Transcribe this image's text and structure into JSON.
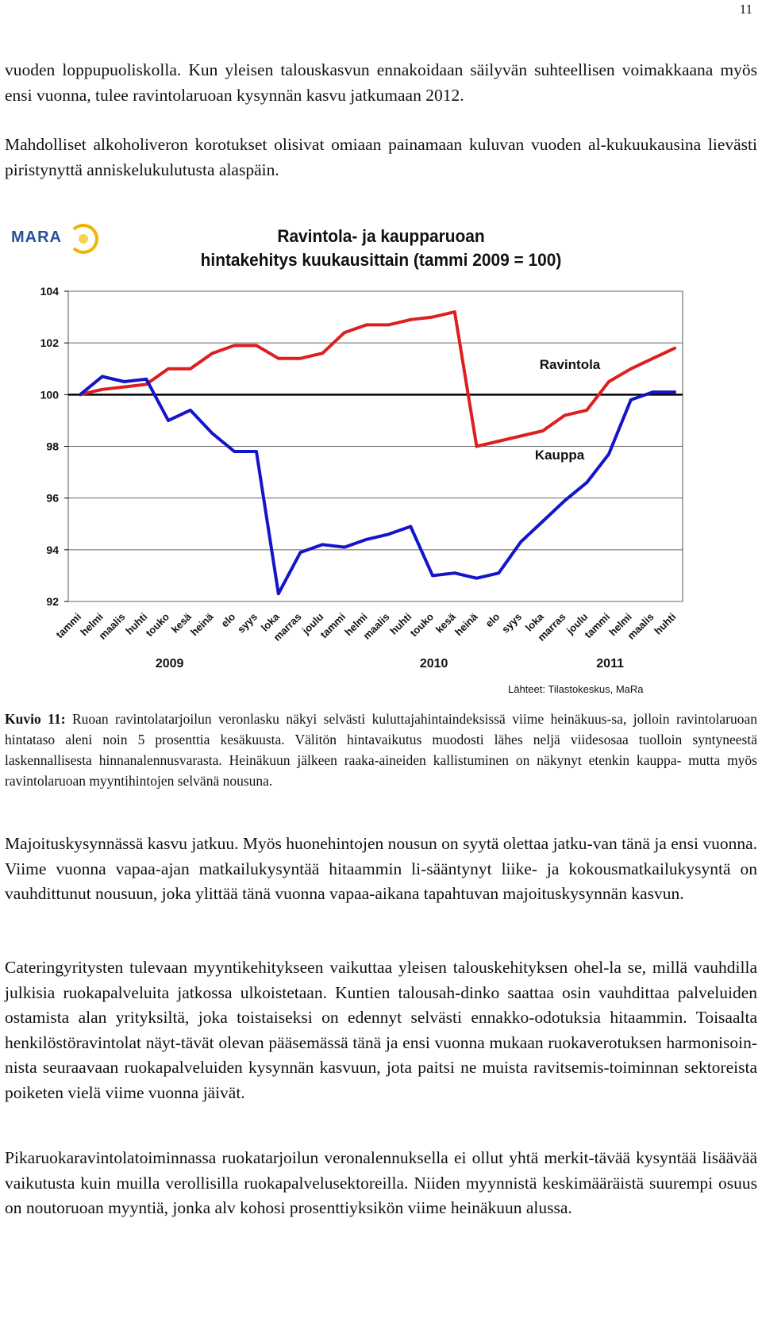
{
  "page_number": "11",
  "paragraphs": {
    "p1": "vuoden loppupuoliskolla. Kun yleisen talouskasvun ennakoidaan säilyvän suhteellisen voimakkaana myös ensi vuonna, tulee ravintolaruoan kysynnän kasvu jatkumaan 2012.",
    "p2": "Mahdolliset alkoholiveron korotukset olisivat omiaan painamaan kuluvan vuoden al-kukuukausina lievästi piristynyttä anniskelukulutusta alaspäin.",
    "caption_label": "Kuvio 11:",
    "caption_text": " Ruoan ravintolatarjoilun veronlasku näkyi selvästi kuluttajahintaindeksissä viime heinäkuus-sa, jolloin ravintolaruoan hintataso aleni noin 5 prosenttia kesäkuusta. Välitön hintavaikutus muodosti lähes neljä viidesosaa tuolloin syntyneestä laskennallisesta hinnanalennusvarasta. Heinäkuun jälkeen raaka-aineiden kallistuminen on näkynyt etenkin kauppa- mutta myös ravintolaruoan myyntihintojen selvänä nousuna.",
    "p3": "Majoituskysynnässä kasvu jatkuu. Myös huonehintojen nousun on syytä olettaa jatku-van tänä ja ensi vuonna. Viime vuonna vapaa-ajan matkailukysyntää hitaammin li-sääntynyt liike- ja kokousmatkailukysyntä on vauhdittunut nousuun, joka ylittää tänä vuonna vapaa-aikana tapahtuvan majoituskysynnän kasvun.",
    "p4": "Cateringyritysten tulevaan myyntikehitykseen vaikuttaa yleisen talouskehityksen ohel-la se, millä vauhdilla julkisia ruokapalveluita jatkossa ulkoistetaan. Kuntien talousah-dinko saattaa osin vauhdittaa palveluiden ostamista alan yrityksiltä, joka toistaiseksi on edennyt selvästi ennakko-odotuksia hitaammin. Toisaalta henkilöstöravintolat näyt-tävät olevan pääsemässä tänä ja ensi vuonna mukaan ruokaverotuksen harmonisoin-nista seuraavaan ruokapalveluiden kysynnän kasvuun, jota paitsi ne muista ravitsemis-toiminnan sektoreista poiketen vielä viime vuonna jäivät.",
    "p5": "Pikaruokaravintolatoiminnassa ruokatarjoilun veronalennuksella ei ollut yhtä merkit-tävää kysyntää lisäävää vaikutusta kuin muilla verollisilla ruokapalvelusektoreilla. Niiden myynnistä keskimääräistä suurempi osuus on noutoruoan myyntiä, jonka alv kohosi prosenttiyksikön viime heinäkuun alussa."
  },
  "logo": {
    "text": "MARA"
  },
  "chart_data": {
    "type": "line",
    "title_line1": "Ravintola- ja kaupparuoan",
    "title_line2": "hintakehitys kuukausittain (tammi 2009 = 100)",
    "categories": [
      "tammi",
      "helmi",
      "maalis",
      "huhti",
      "touko",
      "kesä",
      "heinä",
      "elo",
      "syys",
      "loka",
      "marras",
      "joulu",
      "tammi",
      "helmi",
      "maalis",
      "huhti",
      "touko",
      "kesä",
      "heinä",
      "elo",
      "syys",
      "loka",
      "marras",
      "joulu",
      "tammi",
      "helmi",
      "maalis",
      "huhti"
    ],
    "years": [
      {
        "label": "2009",
        "index": 5.5
      },
      {
        "label": "2010",
        "index": 17.5
      },
      {
        "label": "2011",
        "index": 25.5
      }
    ],
    "ylim": [
      92,
      104
    ],
    "yticks": [
      92,
      94,
      96,
      98,
      100,
      102,
      104
    ],
    "grid": true,
    "series": [
      {
        "name": "Ravintola",
        "color": "#dd1f1f",
        "values": [
          100,
          100.2,
          100.3,
          100.4,
          101.0,
          101.0,
          101.6,
          101.9,
          101.9,
          101.4,
          101.4,
          101.6,
          102.4,
          102.7,
          102.7,
          102.9,
          103.0,
          103.2,
          98.0,
          98.2,
          98.4,
          98.6,
          99.2,
          99.4,
          100.5,
          101.0,
          101.4,
          101.8
        ]
      },
      {
        "name": "Kauppa",
        "color": "#1414c8",
        "values": [
          100,
          100.7,
          100.5,
          100.6,
          99.0,
          99.4,
          98.5,
          97.8,
          97.8,
          92.3,
          93.9,
          94.2,
          94.1,
          94.4,
          94.6,
          94.9,
          93.0,
          93.1,
          92.9,
          93.1,
          94.3,
          95.1,
          95.9,
          96.6,
          97.7,
          99.8,
          100.1,
          100.1
        ]
      }
    ],
    "source": "Lähteet: Tilastokeskus, MaRa"
  }
}
